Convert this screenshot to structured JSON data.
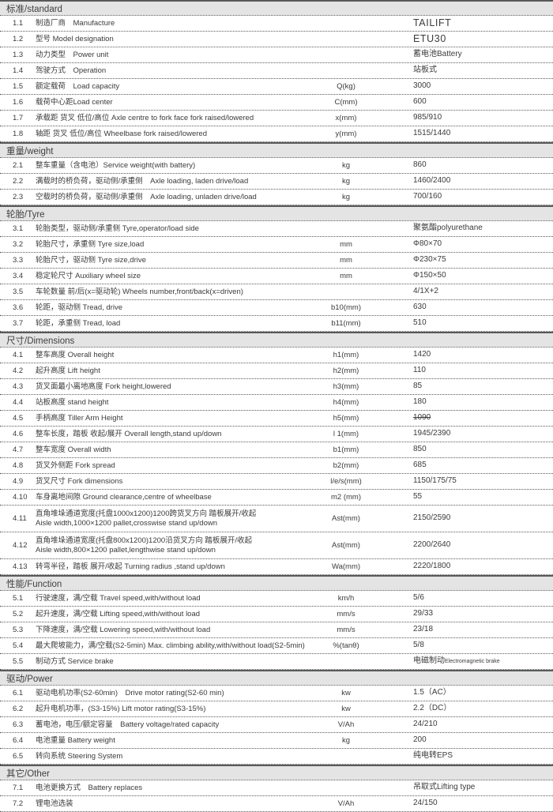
{
  "colors": {
    "section_bar_bg": "#e4e4e4",
    "section_bar_text": "#414042",
    "row_text": "#3b3b3b",
    "solid_rule": "#58595b",
    "dotted_rule": "#5a5a5a"
  },
  "sections": [
    {
      "title": "标准/standard",
      "rows": [
        {
          "num": "1.1",
          "label": "制造厂商　Manufacture",
          "unit": "",
          "value": "TAILIFT",
          "value_large": true
        },
        {
          "num": "1.2",
          "label": "型号 Model designation",
          "unit": "",
          "value": "ETU30",
          "value_large": true
        },
        {
          "num": "1.3",
          "label": "动力类型　Power unit",
          "unit": "",
          "value": "蓄电池Battery"
        },
        {
          "num": "1.4",
          "label": "驾驶方式　Operation",
          "unit": "",
          "value": "站板式"
        },
        {
          "num": "1.5",
          "label": "额定载荷　Load capacity",
          "unit": "Q(kg)",
          "value": "3000"
        },
        {
          "num": "1.6",
          "label": "载荷中心距Load center",
          "unit": "C(mm)",
          "value": "600"
        },
        {
          "num": "1.7",
          "label": "承载距 货叉 低位/高位 Axle centre to fork face fork raised/lowered",
          "unit": "x(mm)",
          "value": "985/910"
        },
        {
          "num": "1.8",
          "label": "轴距 货叉 低位/高位 Wheelbase fork raised/lowered",
          "unit": "y(mm)",
          "value": "1515/1440"
        }
      ]
    },
    {
      "title": "重量/weight",
      "rows": [
        {
          "num": "2.1",
          "label": "整车重量（含电池）Service weight(with battery)",
          "unit": "kg",
          "value": "860"
        },
        {
          "num": "2.2",
          "label": "满载时的桥负荷，驱动侧/承重侧　Axle loading, laden drive/load",
          "unit": "kg",
          "value": "1460/2400"
        },
        {
          "num": "2.3",
          "label": "空载时的桥负荷，驱动侧/承重侧　Axle loading, unladen drive/load",
          "unit": "kg",
          "value": "700/160"
        }
      ]
    },
    {
      "title": "轮胎/Tyre",
      "rows": [
        {
          "num": "3.1",
          "label": "轮胎类型，驱动侧/承重侧 Tyre,operator/load side",
          "unit": "",
          "value": "聚氨酯polyurethane"
        },
        {
          "num": "3.2",
          "label": "轮胎尺寸，承重侧 Tyre size,load",
          "unit": "mm",
          "value": "Φ80×70"
        },
        {
          "num": "3.3",
          "label": "轮胎尺寸，驱动侧 Tyre size,drive",
          "unit": "mm",
          "value": "Φ230×75"
        },
        {
          "num": "3.4",
          "label": "稳定轮尺寸 Auxiliary wheel size",
          "unit": "mm",
          "value": "Φ150×50"
        },
        {
          "num": "3.5",
          "label": "车轮数量 前/后(x=驱动轮) Wheels number,front/back(x=driven)",
          "unit": "",
          "value": "4/1X+2"
        },
        {
          "num": "3.6",
          "label": "轮距，驱动侧 Tread, drive",
          "unit": "b10(mm)",
          "value": "630"
        },
        {
          "num": "3.7",
          "label": "轮距，承重侧 Tread, load",
          "unit": "b11(mm)",
          "value": "510"
        }
      ]
    },
    {
      "title": "尺寸/Dimensions",
      "rows": [
        {
          "num": "4.1",
          "label": "整车高度 Overall height",
          "unit": "h1(mm)",
          "value": "1420"
        },
        {
          "num": "4.2",
          "label": "起升高度 Lift height",
          "unit": "h2(mm)",
          "value": "110"
        },
        {
          "num": "4.3",
          "label": "货叉面最小离地高度 Fork height,lowered",
          "unit": "h3(mm)",
          "value": "85"
        },
        {
          "num": "4.4",
          "label": "站板高度 stand height",
          "unit": "h4(mm)",
          "value": "180"
        },
        {
          "num": "4.5",
          "label": "手柄高度 Tiller Arm Height",
          "unit": "h5(mm)",
          "value": "1090",
          "value_strike": true
        },
        {
          "num": "4.6",
          "label": "整车长度，踏板 收起/展开 Overall length,stand up/down",
          "unit": "l 1(mm)",
          "value": "1945/2390"
        },
        {
          "num": "4.7",
          "label": "整车宽度 Overall width",
          "unit": "b1(mm)",
          "value": "850"
        },
        {
          "num": "4.8",
          "label": "货叉外侧距 Fork spread",
          "unit": "b2(mm)",
          "value": "685"
        },
        {
          "num": "4.9",
          "label": "货叉尺寸 Fork dimensions",
          "unit": "l/e/s(mm)",
          "value": "1150/175/75"
        },
        {
          "num": "4.10",
          "label": "车身离地间隙 Ground clearance,centre of  wheelbase",
          "unit": "m2 (mm)",
          "value": "55"
        },
        {
          "num": "4.11",
          "label": "直角堆垛通道宽度(托盘1000x1200)1200跨货叉方向 踏板展开/收起",
          "label2": "Aisle width,1000×1200 pallet,crosswise stand up/down",
          "unit": "Ast(mm)",
          "value": "2150/2590"
        },
        {
          "num": "4.12",
          "label": "直角堆垛通道宽度(托盘800x1200)1200沿货叉方向 踏板展开/收起",
          "label2": "Aisle width,800×1200 pallet,lengthwise stand up/down",
          "unit": "Ast(mm)",
          "value": "2200/2640"
        },
        {
          "num": "4.13",
          "label": "转弯半径，踏板 展开/收起  Turning radius ,stand up/down",
          "unit": "Wa(mm)",
          "value": "2220/1800"
        }
      ]
    },
    {
      "title": "性能/Function",
      "rows": [
        {
          "num": "5.1",
          "label": "行驶速度，满/空载 Travel speed,with/without load",
          "unit": "km/h",
          "value": "5/6"
        },
        {
          "num": "5.2",
          "label": "起升速度，满/空载 Lifting speed,with/without load",
          "unit": "mm/s",
          "value": "29/33"
        },
        {
          "num": "5.3",
          "label": "下降速度，满/空载 Lowering speed,with/without load",
          "unit": "mm/s",
          "value": "23/18"
        },
        {
          "num": "5.4",
          "label": "最大爬坡能力，满/空载(S2-5min) Max. climbing ability,with/without load(S2-5min)",
          "unit": "%(tanθ)",
          "value": "5/8"
        },
        {
          "num": "5.5",
          "label": "制动方式 Service brake",
          "unit": "",
          "value": "电磁制动",
          "value_small": "Electromagnetic brake"
        }
      ]
    },
    {
      "title": "驱动/Power",
      "rows": [
        {
          "num": "6.1",
          "label": "驱动电机功率(S2-60min)　Drive motor rating(S2-60 min)",
          "unit": "kw",
          "value": "1.5（AC）"
        },
        {
          "num": "6.2",
          "label": "起升电机功率，(S3-15%) Lift motor rating(S3-15%)",
          "unit": "kw",
          "value": "2.2（DC）"
        },
        {
          "num": "6.3",
          "label": "蓄电池，电压/额定容量　Battery voltage/rated capacity",
          "unit": "V/Ah",
          "value": "24/210"
        },
        {
          "num": "6.4",
          "label": "电池重量 Battery weight",
          "unit": "kg",
          "value": "200"
        },
        {
          "num": "6.5",
          "label": "转向系统 Steering System",
          "unit": "",
          "value": "纯电转EPS"
        }
      ]
    },
    {
      "title": "其它/Other",
      "rows": [
        {
          "num": "7.1",
          "label": "电池更换方式　Battery replaces",
          "unit": "",
          "value": "吊取式Lifting type"
        },
        {
          "num": "7.2",
          "label": "锂电池选装",
          "unit": "V/Ah",
          "value": "24/150"
        }
      ]
    }
  ]
}
